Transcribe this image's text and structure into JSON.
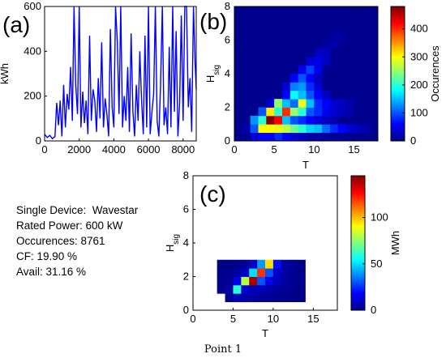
{
  "info": {
    "device": "Single Device:  Wavestar",
    "rated_power": "Rated Power: 600 kW",
    "occurences": "Occurences: 8761",
    "cf": "CF: 19.90 %",
    "avail": "Avail: 31.16 %"
  },
  "caption": "Point 1",
  "chart_data": [
    {
      "panel": "(a)",
      "type": "line",
      "xlabel": "",
      "ylabel": "kWh",
      "xlim": [
        0,
        8760
      ],
      "ylim": [
        0,
        600
      ],
      "xticks": [
        "0",
        "2000",
        "4000",
        "6000",
        "8000"
      ],
      "yticks": [
        "0",
        "200",
        "400",
        "600"
      ],
      "color": "#0000ff",
      "x": [
        0,
        150,
        300,
        450,
        600,
        700,
        800,
        900,
        1000,
        1100,
        1200,
        1300,
        1400,
        1500,
        1600,
        1700,
        1800,
        1900,
        2000,
        2100,
        2200,
        2300,
        2400,
        2500,
        2600,
        2700,
        2800,
        2900,
        3000,
        3100,
        3200,
        3300,
        3400,
        3500,
        3600,
        3700,
        3800,
        3900,
        4000,
        4100,
        4200,
        4300,
        4400,
        4500,
        4600,
        4700,
        4800,
        4900,
        5000,
        5100,
        5200,
        5300,
        5400,
        5500,
        5600,
        5700,
        5800,
        5900,
        6000,
        6100,
        6200,
        6300,
        6400,
        6500,
        6600,
        6700,
        6800,
        6900,
        7000,
        7100,
        7200,
        7300,
        7400,
        7500,
        7600,
        7700,
        7800,
        7900,
        8000,
        8100,
        8200,
        8300,
        8400,
        8500,
        8600,
        8700,
        8760
      ],
      "y": [
        30,
        15,
        25,
        10,
        20,
        170,
        70,
        180,
        20,
        250,
        60,
        210,
        140,
        330,
        90,
        600,
        250,
        120,
        600,
        60,
        220,
        80,
        180,
        30,
        470,
        90,
        230,
        180,
        40,
        280,
        100,
        440,
        60,
        190,
        120,
        20,
        500,
        150,
        60,
        600,
        440,
        120,
        600,
        60,
        200,
        90,
        330,
        40,
        480,
        130,
        20,
        250,
        90,
        400,
        190,
        30,
        470,
        60,
        600,
        30,
        130,
        210,
        600,
        90,
        20,
        250,
        600,
        70,
        150,
        30,
        420,
        60,
        600,
        130,
        490,
        20,
        170,
        560,
        90,
        600,
        600,
        150,
        280,
        40,
        600,
        340,
        230
      ]
    },
    {
      "panel": "(b)",
      "type": "heatmap",
      "xlabel": "T",
      "ylabel": "H_sig",
      "xlim": [
        0,
        18
      ],
      "ylim": [
        0,
        8
      ],
      "xticks": [
        "0",
        "5",
        "10",
        "15"
      ],
      "yticks": [
        "0",
        "2",
        "4",
        "6",
        "8"
      ],
      "colorbar_label": "Occurences",
      "colorbar_range": [
        0,
        480
      ],
      "colorbar_ticks": [
        "0",
        "100",
        "200",
        "300",
        "400"
      ],
      "cells": [
        [
          2,
          0,
          40
        ],
        [
          3,
          0,
          60
        ],
        [
          4,
          0,
          60
        ],
        [
          5,
          0,
          80
        ],
        [
          6,
          0,
          60
        ],
        [
          7,
          0,
          40
        ],
        [
          8,
          0,
          30
        ],
        [
          9,
          0,
          20
        ],
        [
          10,
          0,
          20
        ],
        [
          11,
          0,
          15
        ],
        [
          12,
          0,
          10
        ],
        [
          13,
          0,
          8
        ],
        [
          1,
          1,
          20
        ],
        [
          2,
          1,
          100
        ],
        [
          3,
          1,
          300
        ],
        [
          4,
          1,
          300
        ],
        [
          5,
          1,
          290
        ],
        [
          6,
          1,
          270
        ],
        [
          7,
          1,
          230
        ],
        [
          8,
          1,
          200
        ],
        [
          9,
          1,
          160
        ],
        [
          10,
          1,
          150
        ],
        [
          11,
          1,
          110
        ],
        [
          12,
          1,
          80
        ],
        [
          13,
          1,
          60
        ],
        [
          14,
          1,
          40
        ],
        [
          15,
          1,
          30
        ],
        [
          16,
          1,
          20
        ],
        [
          2,
          2,
          130
        ],
        [
          3,
          2,
          200
        ],
        [
          4,
          2,
          480
        ],
        [
          5,
          2,
          420
        ],
        [
          6,
          2,
          150
        ],
        [
          7,
          2,
          100
        ],
        [
          8,
          2,
          80
        ],
        [
          9,
          2,
          60
        ],
        [
          10,
          2,
          40
        ],
        [
          11,
          2,
          30
        ],
        [
          12,
          2,
          20
        ],
        [
          3,
          3,
          100
        ],
        [
          4,
          3,
          310
        ],
        [
          5,
          3,
          200
        ],
        [
          6,
          3,
          400
        ],
        [
          7,
          3,
          250
        ],
        [
          8,
          3,
          200
        ],
        [
          9,
          3,
          100
        ],
        [
          10,
          3,
          80
        ],
        [
          11,
          3,
          50
        ],
        [
          12,
          3,
          40
        ],
        [
          13,
          3,
          30
        ],
        [
          14,
          3,
          20
        ],
        [
          4,
          4,
          40
        ],
        [
          5,
          4,
          250
        ],
        [
          6,
          4,
          150
        ],
        [
          7,
          4,
          110
        ],
        [
          8,
          4,
          290
        ],
        [
          9,
          4,
          150
        ],
        [
          10,
          4,
          80
        ],
        [
          11,
          4,
          60
        ],
        [
          12,
          4,
          40
        ],
        [
          13,
          4,
          30
        ],
        [
          14,
          4,
          20
        ],
        [
          6,
          5,
          60
        ],
        [
          7,
          5,
          180
        ],
        [
          8,
          5,
          150
        ],
        [
          9,
          5,
          100
        ],
        [
          10,
          5,
          60
        ],
        [
          11,
          5,
          30
        ],
        [
          6,
          6,
          40
        ],
        [
          7,
          6,
          120
        ],
        [
          8,
          6,
          130
        ],
        [
          9,
          6,
          80
        ],
        [
          10,
          6,
          40
        ],
        [
          7,
          7,
          60
        ],
        [
          8,
          7,
          100
        ],
        [
          9,
          7,
          60
        ],
        [
          10,
          7,
          30
        ],
        [
          8,
          8,
          50
        ],
        [
          9,
          8,
          90
        ],
        [
          10,
          8,
          50
        ],
        [
          9,
          9,
          40
        ],
        [
          10,
          9,
          50
        ],
        [
          11,
          9,
          30
        ],
        [
          10,
          10,
          30
        ],
        [
          11,
          10,
          30
        ],
        [
          11,
          11,
          20
        ],
        [
          12,
          11,
          20
        ],
        [
          12,
          12,
          15
        ],
        [
          13,
          12,
          15
        ],
        [
          13,
          13,
          10
        ],
        [
          14,
          13,
          10
        ],
        [
          14,
          14,
          8
        ],
        [
          15,
          14,
          8
        ],
        [
          15,
          15,
          5
        ],
        [
          16,
          15,
          5
        ]
      ]
    },
    {
      "panel": "(c)",
      "type": "heatmap",
      "xlabel": "T",
      "ylabel": "H_sig",
      "xlim": [
        0,
        18
      ],
      "ylim": [
        0,
        8
      ],
      "xticks": [
        "0",
        "5",
        "10",
        "15"
      ],
      "yticks": [
        "0",
        "2",
        "4",
        "6",
        "8"
      ],
      "colorbar_label": "MWh",
      "colorbar_range": [
        0,
        145
      ],
      "colorbar_ticks": [
        "0",
        "50",
        "100"
      ],
      "cells": [
        [
          4,
          1,
          3
        ],
        [
          5,
          1,
          8
        ],
        [
          6,
          1,
          6
        ],
        [
          7,
          1,
          5
        ],
        [
          8,
          1,
          3
        ],
        [
          9,
          1,
          3
        ],
        [
          10,
          1,
          2
        ],
        [
          11,
          1,
          2
        ],
        [
          12,
          1,
          1
        ],
        [
          13,
          1,
          1
        ],
        [
          3,
          2,
          2
        ],
        [
          4,
          2,
          5
        ],
        [
          5,
          2,
          60
        ],
        [
          6,
          2,
          12
        ],
        [
          7,
          2,
          8
        ],
        [
          8,
          2,
          8
        ],
        [
          9,
          2,
          5
        ],
        [
          10,
          2,
          4
        ],
        [
          11,
          2,
          3
        ],
        [
          12,
          2,
          2
        ],
        [
          13,
          2,
          1
        ],
        [
          3,
          3,
          2
        ],
        [
          4,
          3,
          3
        ],
        [
          5,
          3,
          15
        ],
        [
          6,
          3,
          80
        ],
        [
          7,
          3,
          140
        ],
        [
          8,
          3,
          30
        ],
        [
          9,
          3,
          15
        ],
        [
          10,
          3,
          8
        ],
        [
          11,
          3,
          5
        ],
        [
          12,
          3,
          3
        ],
        [
          13,
          3,
          2
        ],
        [
          3,
          4,
          1
        ],
        [
          4,
          4,
          2
        ],
        [
          5,
          4,
          5
        ],
        [
          6,
          4,
          10
        ],
        [
          7,
          4,
          50
        ],
        [
          8,
          4,
          120
        ],
        [
          9,
          4,
          30
        ],
        [
          10,
          4,
          10
        ],
        [
          11,
          4,
          5
        ],
        [
          12,
          4,
          3
        ],
        [
          13,
          4,
          1
        ],
        [
          3,
          5,
          1
        ],
        [
          4,
          5,
          1
        ],
        [
          5,
          5,
          2
        ],
        [
          6,
          5,
          3
        ],
        [
          7,
          5,
          10
        ],
        [
          8,
          5,
          40
        ],
        [
          9,
          5,
          95
        ],
        [
          10,
          5,
          20
        ],
        [
          11,
          5,
          5
        ],
        [
          12,
          5,
          2
        ],
        [
          13,
          5,
          1
        ]
      ]
    }
  ]
}
